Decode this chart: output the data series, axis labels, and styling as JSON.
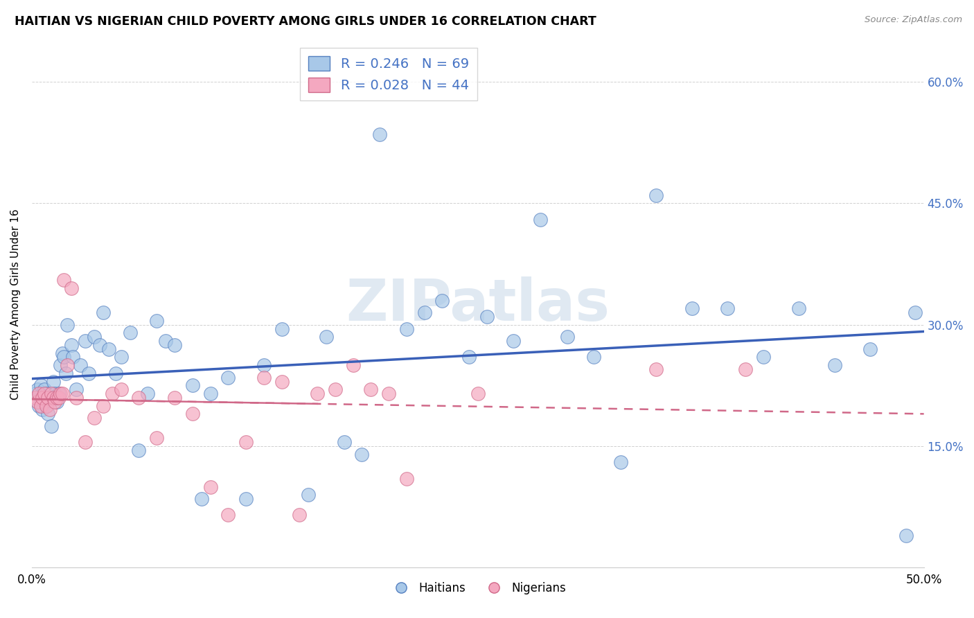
{
  "title": "HAITIAN VS NIGERIAN CHILD POVERTY AMONG GIRLS UNDER 16 CORRELATION CHART",
  "source": "Source: ZipAtlas.com",
  "ylabel": "Child Poverty Among Girls Under 16",
  "xlim": [
    0.0,
    0.5
  ],
  "ylim": [
    0.0,
    0.65
  ],
  "ytick_positions": [
    0.15,
    0.3,
    0.45,
    0.6
  ],
  "ytick_labels": [
    "15.0%",
    "30.0%",
    "45.0%",
    "60.0%"
  ],
  "xtick_positions": [
    0.0,
    0.1,
    0.2,
    0.3,
    0.4,
    0.5
  ],
  "xtick_labels": [
    "0.0%",
    "",
    "",
    "",
    "",
    "50.0%"
  ],
  "watermark": "ZIPatlas",
  "haitian_color": "#a8c8e8",
  "nigerian_color": "#f4a8c0",
  "haitian_edge_color": "#5580c0",
  "nigerian_edge_color": "#d06888",
  "haitian_line_color": "#3a60b8",
  "nigerian_line_color": "#d06888",
  "right_tick_color": "#4472c4",
  "legend_text_color": "#4472c4",
  "R_haitian": 0.246,
  "N_haitian": 69,
  "R_nigerian": 0.028,
  "N_nigerian": 44,
  "haitian_x": [
    0.002,
    0.003,
    0.004,
    0.005,
    0.006,
    0.007,
    0.007,
    0.008,
    0.009,
    0.01,
    0.011,
    0.012,
    0.013,
    0.014,
    0.015,
    0.016,
    0.017,
    0.018,
    0.019,
    0.02,
    0.022,
    0.023,
    0.025,
    0.027,
    0.03,
    0.032,
    0.035,
    0.038,
    0.04,
    0.043,
    0.047,
    0.05,
    0.055,
    0.06,
    0.065,
    0.07,
    0.075,
    0.08,
    0.09,
    0.095,
    0.1,
    0.11,
    0.12,
    0.13,
    0.14,
    0.155,
    0.165,
    0.175,
    0.185,
    0.195,
    0.21,
    0.22,
    0.23,
    0.245,
    0.255,
    0.27,
    0.285,
    0.3,
    0.315,
    0.33,
    0.35,
    0.37,
    0.39,
    0.41,
    0.43,
    0.45,
    0.47,
    0.49,
    0.495
  ],
  "haitian_y": [
    0.215,
    0.22,
    0.2,
    0.225,
    0.195,
    0.22,
    0.205,
    0.215,
    0.19,
    0.21,
    0.175,
    0.23,
    0.215,
    0.205,
    0.215,
    0.25,
    0.265,
    0.26,
    0.24,
    0.3,
    0.275,
    0.26,
    0.22,
    0.25,
    0.28,
    0.24,
    0.285,
    0.275,
    0.315,
    0.27,
    0.24,
    0.26,
    0.29,
    0.145,
    0.215,
    0.305,
    0.28,
    0.275,
    0.225,
    0.085,
    0.215,
    0.235,
    0.085,
    0.25,
    0.295,
    0.09,
    0.285,
    0.155,
    0.14,
    0.535,
    0.295,
    0.315,
    0.33,
    0.26,
    0.31,
    0.28,
    0.43,
    0.285,
    0.26,
    0.13,
    0.46,
    0.32,
    0.32,
    0.26,
    0.32,
    0.25,
    0.27,
    0.04,
    0.315
  ],
  "nigerian_x": [
    0.002,
    0.003,
    0.004,
    0.005,
    0.006,
    0.007,
    0.008,
    0.009,
    0.01,
    0.011,
    0.012,
    0.013,
    0.014,
    0.015,
    0.016,
    0.017,
    0.018,
    0.02,
    0.022,
    0.025,
    0.03,
    0.035,
    0.04,
    0.045,
    0.05,
    0.06,
    0.07,
    0.08,
    0.09,
    0.1,
    0.11,
    0.12,
    0.13,
    0.14,
    0.15,
    0.16,
    0.17,
    0.18,
    0.19,
    0.2,
    0.21,
    0.25,
    0.35,
    0.4
  ],
  "nigerian_y": [
    0.21,
    0.205,
    0.215,
    0.2,
    0.21,
    0.215,
    0.2,
    0.21,
    0.195,
    0.215,
    0.21,
    0.205,
    0.21,
    0.21,
    0.215,
    0.215,
    0.355,
    0.25,
    0.345,
    0.21,
    0.155,
    0.185,
    0.2,
    0.215,
    0.22,
    0.21,
    0.16,
    0.21,
    0.19,
    0.1,
    0.065,
    0.155,
    0.235,
    0.23,
    0.065,
    0.215,
    0.22,
    0.25,
    0.22,
    0.215,
    0.11,
    0.215,
    0.245,
    0.245
  ]
}
